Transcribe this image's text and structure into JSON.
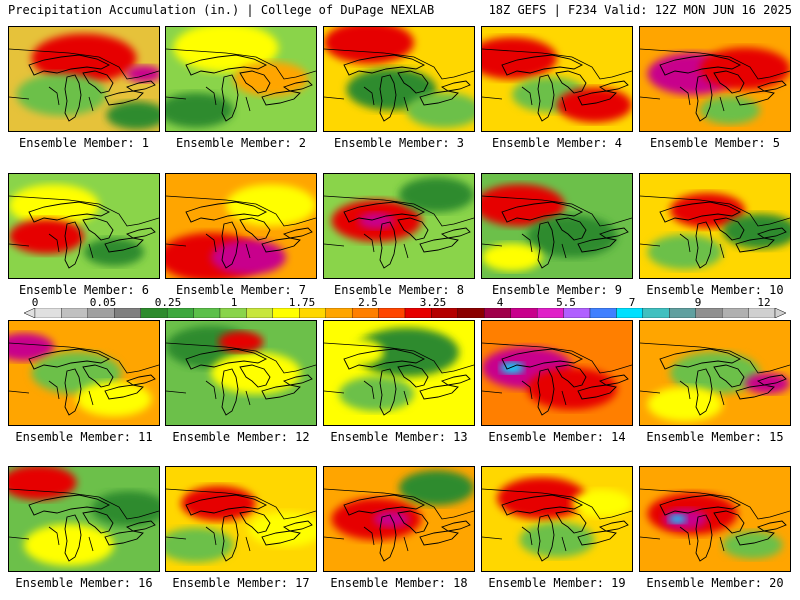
{
  "header": {
    "title": "Precipitation Accumulation (in.) | College of DuPage NEXLAB",
    "subtitle": "18Z GEFS | F234 Valid: 12Z MON JUN 16 2025"
  },
  "members": [
    "Ensemble Member: 1",
    "Ensemble Member: 2",
    "Ensemble Member: 3",
    "Ensemble Member: 4",
    "Ensemble Member: 5",
    "Ensemble Member: 6",
    "Ensemble Member: 7",
    "Ensemble Member: 8",
    "Ensemble Member: 9",
    "Ensemble Member: 10",
    "Ensemble Member: 11",
    "Ensemble Member: 12",
    "Ensemble Member: 13",
    "Ensemble Member: 14",
    "Ensemble Member: 15",
    "Ensemble Member: 16",
    "Ensemble Member: 17",
    "Ensemble Member: 18",
    "Ensemble Member: 19",
    "Ensemble Member: 20"
  ],
  "legend": {
    "ticks": [
      "0",
      "0.05",
      "0.25",
      "1",
      "1.75",
      "2.5",
      "3.25",
      "4",
      "5.5",
      "7",
      "9",
      "12"
    ],
    "colors": [
      "#e0e0e0",
      "#c0c0c0",
      "#a0a0a0",
      "#808080",
      "#2e8b2e",
      "#3ea83e",
      "#5cc04a",
      "#8ad44a",
      "#c8e63c",
      "#ffff00",
      "#ffd700",
      "#ffa500",
      "#ff7f00",
      "#ff4500",
      "#e60000",
      "#b40000",
      "#8b0000",
      "#a0004a",
      "#c8008c",
      "#e020c8",
      "#b060ff",
      "#4080ff",
      "#00e0ff",
      "#40c0c0",
      "#60a0a0",
      "#909090",
      "#b0b0b0",
      "#d0d0d0"
    ]
  },
  "palette": {
    "dry": "#2e8b2e",
    "light": "#6cc04a",
    "moderate": "#ffff00",
    "heavy": "#ffa500",
    "very_heavy": "#e60000",
    "extreme": "#c8008c",
    "peak": "#00e0ff"
  },
  "panel_fields": [
    {
      "bg": "#e6c23a",
      "blobs": [
        [
          "very_heavy",
          0.5,
          0.3,
          0.35
        ],
        [
          "light",
          0.35,
          0.65,
          0.3
        ],
        [
          "dry",
          0.85,
          0.85,
          0.2
        ],
        [
          "extreme",
          0.9,
          0.45,
          0.12
        ]
      ]
    },
    {
      "bg": "#8ad44a",
      "blobs": [
        [
          "moderate",
          0.4,
          0.2,
          0.35
        ],
        [
          "dry",
          0.2,
          0.8,
          0.25
        ],
        [
          "heavy",
          0.7,
          0.5,
          0.25
        ]
      ]
    },
    {
      "bg": "#ffd700",
      "blobs": [
        [
          "very_heavy",
          0.3,
          0.15,
          0.3
        ],
        [
          "dry",
          0.45,
          0.6,
          0.3
        ],
        [
          "light",
          0.8,
          0.8,
          0.25
        ]
      ]
    },
    {
      "bg": "#ffd700",
      "blobs": [
        [
          "very_heavy",
          0.2,
          0.3,
          0.3
        ],
        [
          "light",
          0.45,
          0.65,
          0.25
        ],
        [
          "very_heavy",
          0.75,
          0.75,
          0.25
        ]
      ]
    },
    {
      "bg": "#ffa500",
      "blobs": [
        [
          "extreme",
          0.35,
          0.45,
          0.3
        ],
        [
          "very_heavy",
          0.7,
          0.4,
          0.3
        ],
        [
          "light",
          0.6,
          0.8,
          0.2
        ]
      ]
    },
    {
      "bg": "#8ad44a",
      "blobs": [
        [
          "moderate",
          0.3,
          0.3,
          0.3
        ],
        [
          "very_heavy",
          0.25,
          0.6,
          0.25
        ],
        [
          "dry",
          0.7,
          0.75,
          0.2
        ]
      ]
    },
    {
      "bg": "#ffa500",
      "blobs": [
        [
          "very_heavy",
          0.3,
          0.8,
          0.35
        ],
        [
          "extreme",
          0.55,
          0.8,
          0.25
        ],
        [
          "moderate",
          0.7,
          0.3,
          0.3
        ]
      ]
    },
    {
      "bg": "#8ad44a",
      "blobs": [
        [
          "very_heavy",
          0.35,
          0.45,
          0.3
        ],
        [
          "extreme",
          0.35,
          0.45,
          0.12
        ],
        [
          "dry",
          0.75,
          0.2,
          0.25
        ]
      ]
    },
    {
      "bg": "#6cc04a",
      "blobs": [
        [
          "very_heavy",
          0.25,
          0.3,
          0.3
        ],
        [
          "dry",
          0.6,
          0.6,
          0.3
        ],
        [
          "moderate",
          0.2,
          0.8,
          0.2
        ]
      ]
    },
    {
      "bg": "#ffd700",
      "blobs": [
        [
          "very_heavy",
          0.45,
          0.35,
          0.25
        ],
        [
          "dry",
          0.8,
          0.55,
          0.25
        ],
        [
          "light",
          0.3,
          0.75,
          0.25
        ]
      ]
    },
    {
      "bg": "#ffa500",
      "blobs": [
        [
          "extreme",
          0.1,
          0.25,
          0.2
        ],
        [
          "light",
          0.45,
          0.5,
          0.3
        ],
        [
          "moderate",
          0.7,
          0.75,
          0.25
        ]
      ]
    },
    {
      "bg": "#6cc04a",
      "blobs": [
        [
          "dry",
          0.3,
          0.25,
          0.3
        ],
        [
          "moderate",
          0.6,
          0.5,
          0.3
        ],
        [
          "very_heavy",
          0.5,
          0.2,
          0.15
        ]
      ]
    },
    {
      "bg": "#ffff00",
      "blobs": [
        [
          "dry",
          0.55,
          0.3,
          0.35
        ],
        [
          "light",
          0.35,
          0.7,
          0.25
        ],
        [
          "moderate",
          0.2,
          0.3,
          0.2
        ]
      ]
    },
    {
      "bg": "#ff7f00",
      "blobs": [
        [
          "extreme",
          0.3,
          0.45,
          0.3
        ],
        [
          "very_heavy",
          0.6,
          0.65,
          0.3
        ],
        [
          "peak",
          0.2,
          0.45,
          0.08
        ]
      ]
    },
    {
      "bg": "#ffa500",
      "blobs": [
        [
          "light",
          0.5,
          0.5,
          0.3
        ],
        [
          "moderate",
          0.3,
          0.8,
          0.25
        ],
        [
          "extreme",
          0.85,
          0.6,
          0.15
        ]
      ]
    },
    {
      "bg": "#6cc04a",
      "blobs": [
        [
          "very_heavy",
          0.2,
          0.15,
          0.25
        ],
        [
          "moderate",
          0.4,
          0.75,
          0.3
        ],
        [
          "dry",
          0.8,
          0.4,
          0.25
        ]
      ]
    },
    {
      "bg": "#ffd700",
      "blobs": [
        [
          "very_heavy",
          0.35,
          0.35,
          0.25
        ],
        [
          "light",
          0.2,
          0.75,
          0.25
        ],
        [
          "moderate",
          0.8,
          0.6,
          0.25
        ]
      ]
    },
    {
      "bg": "#ffa500",
      "blobs": [
        [
          "very_heavy",
          0.35,
          0.5,
          0.3
        ],
        [
          "extreme",
          0.45,
          0.5,
          0.12
        ],
        [
          "dry",
          0.75,
          0.2,
          0.25
        ]
      ]
    },
    {
      "bg": "#ffd700",
      "blobs": [
        [
          "very_heavy",
          0.4,
          0.3,
          0.3
        ],
        [
          "light",
          0.5,
          0.7,
          0.25
        ],
        [
          "moderate",
          0.8,
          0.35,
          0.2
        ]
      ]
    },
    {
      "bg": "#ffa500",
      "blobs": [
        [
          "very_heavy",
          0.35,
          0.45,
          0.3
        ],
        [
          "extreme",
          0.3,
          0.5,
          0.15
        ],
        [
          "peak",
          0.25,
          0.5,
          0.06
        ],
        [
          "light",
          0.75,
          0.75,
          0.2
        ]
      ]
    }
  ]
}
